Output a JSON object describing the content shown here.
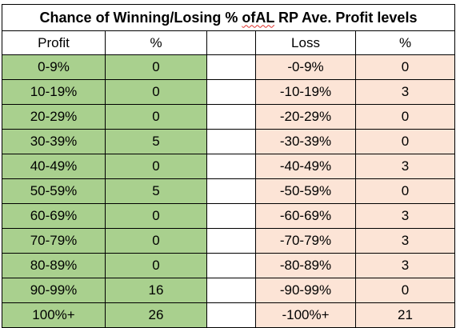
{
  "sheet": {
    "title_part1": "Chance of Winning/Losing % ",
    "title_misspelled": "ofAL",
    "title_part2": " RP Ave. Profit levels",
    "headers": {
      "profit": "Profit",
      "profit_pct": "%",
      "loss": "Loss",
      "loss_pct": "%"
    },
    "rows": [
      {
        "profit": "0-9%",
        "profit_pct": "0",
        "loss": "-0-9%",
        "loss_pct": "0"
      },
      {
        "profit": "10-19%",
        "profit_pct": "0",
        "loss": "-10-19%",
        "loss_pct": "3"
      },
      {
        "profit": "20-29%",
        "profit_pct": "0",
        "loss": "-20-29%",
        "loss_pct": "0"
      },
      {
        "profit": "30-39%",
        "profit_pct": "5",
        "loss": "-30-39%",
        "loss_pct": "0"
      },
      {
        "profit": "40-49%",
        "profit_pct": "0",
        "loss": "-40-49%",
        "loss_pct": "3"
      },
      {
        "profit": "50-59%",
        "profit_pct": "5",
        "loss": "-50-59%",
        "loss_pct": "0"
      },
      {
        "profit": "60-69%",
        "profit_pct": "0",
        "loss": "-60-69%",
        "loss_pct": "3"
      },
      {
        "profit": "70-79%",
        "profit_pct": "0",
        "loss": "-70-79%",
        "loss_pct": "3"
      },
      {
        "profit": "80-89%",
        "profit_pct": "0",
        "loss": "-80-89%",
        "loss_pct": "3"
      },
      {
        "profit": "90-99%",
        "profit_pct": "16",
        "loss": "-90-99%",
        "loss_pct": "0"
      },
      {
        "profit": "100%+",
        "profit_pct": "26",
        "loss": "-100%+",
        "loss_pct": "21"
      }
    ]
  },
  "colors": {
    "profit_fill": "#a9d08e",
    "loss_fill": "#fce4d6",
    "spellcheck_underline": "#e0302a"
  }
}
